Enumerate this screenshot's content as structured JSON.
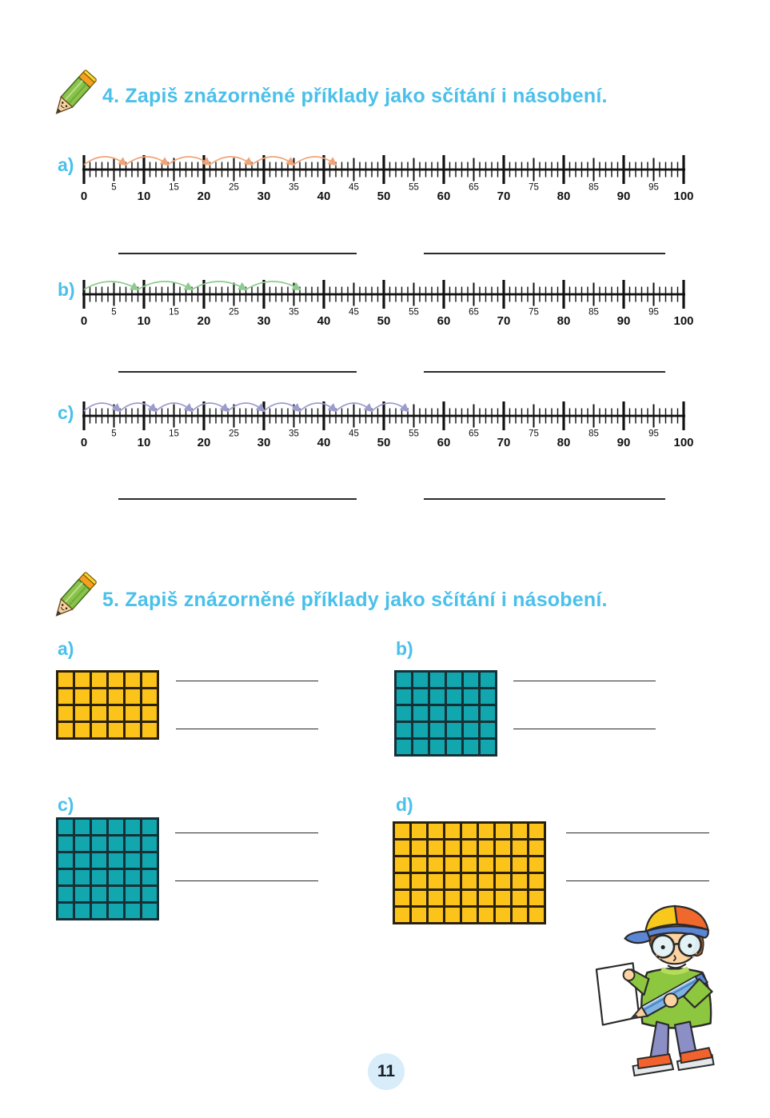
{
  "page": {
    "number": "11"
  },
  "colors": {
    "heading_blue": "#4ac0ea",
    "axis_black": "#111111",
    "answer_line": "#2a2a2a",
    "badge_bg": "#d9ecf9"
  },
  "task4": {
    "heading": "4. Zapiš znázorněné příklady jako sčítání i násobení.",
    "icon": "pencil-icon",
    "axis": {
      "min": 0,
      "max": 100,
      "label_step": 5,
      "major_step": 10
    },
    "number_lines": [
      {
        "label": "a)",
        "step": 7,
        "jumps": 6,
        "start": 0,
        "end": 42,
        "arc_color": "#f0a478"
      },
      {
        "label": "b)",
        "step": 9,
        "jumps": 4,
        "start": 0,
        "end": 36,
        "arc_color": "#8ecb8e"
      },
      {
        "label": "c)",
        "step": 6,
        "jumps": 9,
        "start": 0,
        "end": 54,
        "arc_color": "#9c9ccd"
      }
    ],
    "answer_blanks_per_line": 2
  },
  "task5": {
    "heading": "5. Zapiš znázorněné příklady jako sčítání i násobení.",
    "icon": "pencil-icon",
    "grids": [
      {
        "label": "a)",
        "cols": 6,
        "rows": 4,
        "fill_color": "#fcc41b",
        "border_color": "#2b2008"
      },
      {
        "label": "b)",
        "cols": 6,
        "rows": 5,
        "fill_color": "#12a6af",
        "border_color": "#143137"
      },
      {
        "label": "c)",
        "cols": 6,
        "rows": 6,
        "fill_color": "#12a6af",
        "border_color": "#143137"
      },
      {
        "label": "d)",
        "cols": 9,
        "rows": 6,
        "fill_color": "#fcc41b",
        "border_color": "#2b2008"
      }
    ],
    "answer_blanks_per_grid": 2
  }
}
